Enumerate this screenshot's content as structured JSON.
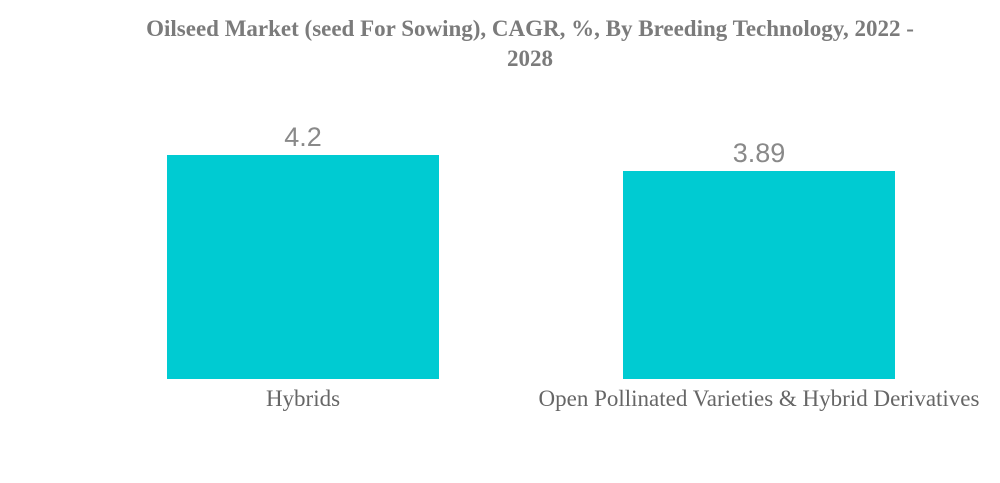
{
  "page": {
    "background_color": "#ffffff"
  },
  "chart_data": {
    "type": "bar",
    "title": "Oilseed Market (seed For Sowing), CAGR, %, By Breeding Technology, 2022 - 2028",
    "title_lines": [
      "Oilseed Market (seed For Sowing), CAGR, %, By Breeding Technology, 2022 -",
      "2028"
    ],
    "categories": [
      "Hybrids",
      "Open Pollinated Varieties & Hybrid Derivatives"
    ],
    "values": [
      4.2,
      3.89
    ],
    "value_labels": [
      "4.2",
      "3.89"
    ],
    "xlabel": "",
    "ylabel": "",
    "ylim": [
      0,
      4.2
    ],
    "grid": false,
    "legend": false,
    "axes_visible": false,
    "bar_color": "#00cbd2",
    "title_color": "#7b7b7b",
    "value_label_color": "#898989",
    "category_label_color": "#666666"
  }
}
